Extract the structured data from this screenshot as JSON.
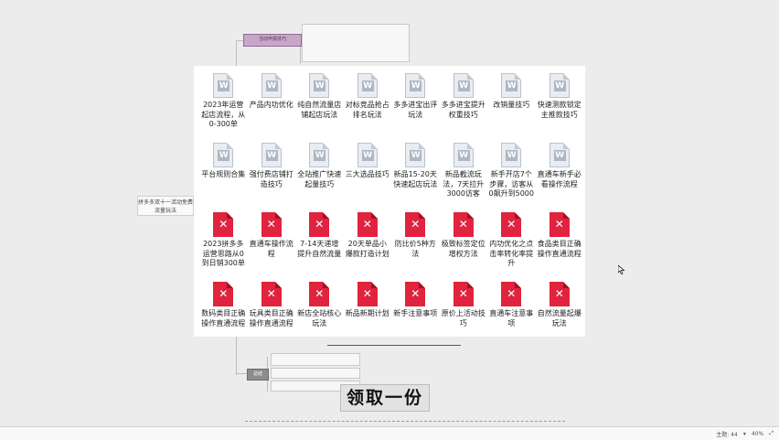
{
  "mindmap": {
    "root_label": "拼多多双十一活动免费流量玩法",
    "pink_tag": "活动申报技巧",
    "gray_tag": "总结"
  },
  "files": [
    [
      {
        "type": "w",
        "label": "2023年运营起店流程，从0-300单"
      },
      {
        "type": "w",
        "label": "产品内功优化"
      },
      {
        "type": "w",
        "label": "纯自然流量店铺起店玩法"
      },
      {
        "type": "w",
        "label": "对标竞品抢占排名玩法"
      },
      {
        "type": "w",
        "label": "多多进宝出评玩法"
      },
      {
        "type": "w",
        "label": "多多进宝提升权重技巧"
      },
      {
        "type": "w",
        "label": "改销量技巧"
      },
      {
        "type": "w",
        "label": "快速测款锁定主推款技巧"
      }
    ],
    [
      {
        "type": "w",
        "label": "平台规则合集"
      },
      {
        "type": "w",
        "label": "强付费店铺打造技巧"
      },
      {
        "type": "w",
        "label": "全站推广快速起量技巧"
      },
      {
        "type": "w",
        "label": "三大选品技巧"
      },
      {
        "type": "w",
        "label": "新品15-20天快速起店玩法"
      },
      {
        "type": "w",
        "label": "新品截流玩法，7天拉升3000访客"
      },
      {
        "type": "w",
        "label": "新手开店7个步骤，访客从0飙升到5000"
      },
      {
        "type": "w",
        "label": "直通车新手必看操作流程"
      }
    ],
    [
      {
        "type": "x",
        "label": "2023拼多多运营思路从0到日销300单"
      },
      {
        "type": "x",
        "label": "直通车操作流程"
      },
      {
        "type": "x",
        "label": "7-14天递增提升自然流量"
      },
      {
        "type": "x",
        "label": "20天单品小爆款打造计划"
      },
      {
        "type": "x",
        "label": "防比价5种方法"
      },
      {
        "type": "x",
        "label": "极致标签定位增权方法"
      },
      {
        "type": "x",
        "label": "内功优化之点击率转化率提升"
      },
      {
        "type": "x",
        "label": "食品类目正确操作直通流程"
      }
    ],
    [
      {
        "type": "x",
        "label": "数码类目正确操作直通流程"
      },
      {
        "type": "x",
        "label": "玩具类目正确操作直通流程"
      },
      {
        "type": "x",
        "label": "新店全站核心玩法"
      },
      {
        "type": "x",
        "label": "新品新期计划"
      },
      {
        "type": "x",
        "label": "新手注意事项"
      },
      {
        "type": "x",
        "label": "原价上活动技巧"
      },
      {
        "type": "x",
        "label": "直通车注意事项"
      },
      {
        "type": "x",
        "label": "自然流量起爆玩法"
      }
    ]
  ],
  "video_caption": "领取一份",
  "statusbar": {
    "topic_count": "主题: 44",
    "zoom": "40%"
  },
  "colors": {
    "word_icon": "#aeb7c3",
    "xmind_icon": "#e0233e"
  }
}
